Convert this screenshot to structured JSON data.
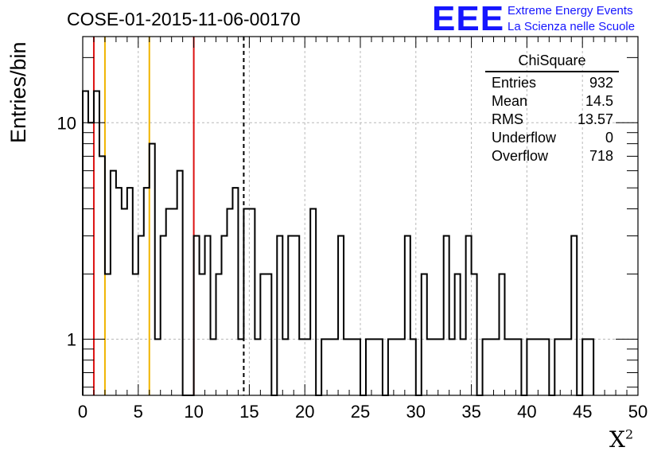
{
  "title": "COSE-01-2015-11-06-00170",
  "logo": {
    "mark": "EEE",
    "line1": "Extreme Energy Events",
    "line2": "La Scienza nelle Scuole",
    "color": "#1515ff"
  },
  "stats": {
    "name": "ChiSquare",
    "rows": [
      {
        "label": "Entries",
        "value": "932"
      },
      {
        "label": "Mean",
        "value": "14.5"
      },
      {
        "label": "RMS",
        "value": "13.57"
      },
      {
        "label": "Underflow",
        "value": "0"
      },
      {
        "label": "Overflow",
        "value": "718"
      }
    ]
  },
  "chart_data": {
    "type": "histogram",
    "title": "COSE-01-2015-11-06-00170",
    "xlabel": "X",
    "xlabel_sup": "2",
    "ylabel": "Entries/bin",
    "xlim": [
      0,
      50
    ],
    "ylim": [
      0.55,
      25
    ],
    "yscale": "log",
    "grid": true,
    "bin_width": 0.5,
    "x_ticks": [
      "0",
      "5",
      "10",
      "15",
      "20",
      "25",
      "30",
      "35",
      "40",
      "45",
      "50"
    ],
    "y_ticks": [
      "1",
      "10"
    ],
    "counts": [
      14,
      10,
      14,
      7,
      2,
      6,
      5,
      4,
      5,
      2,
      3,
      5,
      8,
      1,
      3,
      4,
      4,
      6,
      0,
      0,
      3,
      2,
      3,
      1,
      2,
      3,
      4,
      5,
      1,
      4,
      4,
      1,
      2,
      2,
      0,
      3,
      1,
      3,
      3,
      1,
      1,
      4,
      0,
      1,
      1,
      1,
      3,
      1,
      1,
      1,
      0,
      1,
      1,
      1,
      0,
      1,
      1,
      1,
      3,
      1,
      0,
      2,
      1,
      1,
      1,
      3,
      1,
      2,
      1,
      3,
      2,
      0,
      1,
      1,
      1,
      2,
      1,
      1,
      1,
      0,
      1,
      1,
      1,
      1,
      0,
      1,
      1,
      1,
      3,
      0,
      1,
      1
    ],
    "vlines": [
      {
        "x": 1.0,
        "color": "#dd1111",
        "style": "solid"
      },
      {
        "x": 2.0,
        "color": "#f0b400",
        "style": "solid"
      },
      {
        "x": 6.0,
        "color": "#f0b400",
        "style": "solid"
      },
      {
        "x": 10.0,
        "color": "#dd1111",
        "style": "solid"
      },
      {
        "x": 14.5,
        "color": "#000000",
        "style": "dashed"
      }
    ]
  }
}
